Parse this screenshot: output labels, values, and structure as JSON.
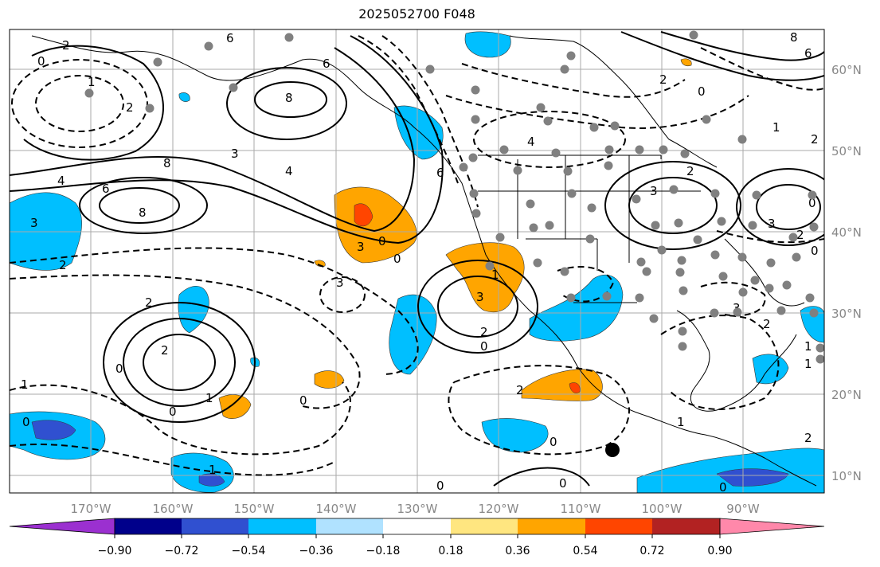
{
  "title": "2025052700 F048",
  "map": {
    "lon_labels": [
      "170°W",
      "160°W",
      "150°W",
      "140°W",
      "130°W",
      "120°W",
      "110°W",
      "100°W",
      "90°W"
    ],
    "lat_labels": [
      "60°N",
      "50°N",
      "40°N",
      "30°N",
      "20°N",
      "10°N"
    ],
    "contour_labels": [
      "2",
      "0",
      "1",
      "2",
      "8",
      "6",
      "8",
      "3",
      "4",
      "6",
      "4",
      "8",
      "2",
      "3",
      "4",
      "6",
      "3",
      "2",
      "0",
      "6",
      "2",
      "1",
      "3",
      "2",
      "0",
      "0",
      "3",
      "2",
      "1",
      "1",
      "0",
      "1",
      "0",
      "0",
      "1",
      "1",
      "0",
      "3",
      "2",
      "2",
      "0",
      "0",
      "2",
      "0",
      "1",
      "0",
      "2",
      "0",
      "8",
      "6",
      "1",
      "2",
      "3",
      "0",
      "3",
      "2",
      "0"
    ],
    "station_marker": "black-dot"
  },
  "colorbar": {
    "ticks": [
      "−0.90",
      "−0.72",
      "−0.54",
      "−0.36",
      "−0.18",
      "0.18",
      "0.36",
      "0.54",
      "0.72",
      "0.90"
    ],
    "colors": [
      "#9b30d0",
      "#00008b",
      "#3050d0",
      "#00bfff",
      "#b0e2ff",
      "#ffffff",
      "#ffe680",
      "#ffa500",
      "#ff4500",
      "#b22222",
      "#ff88aa"
    ]
  }
}
